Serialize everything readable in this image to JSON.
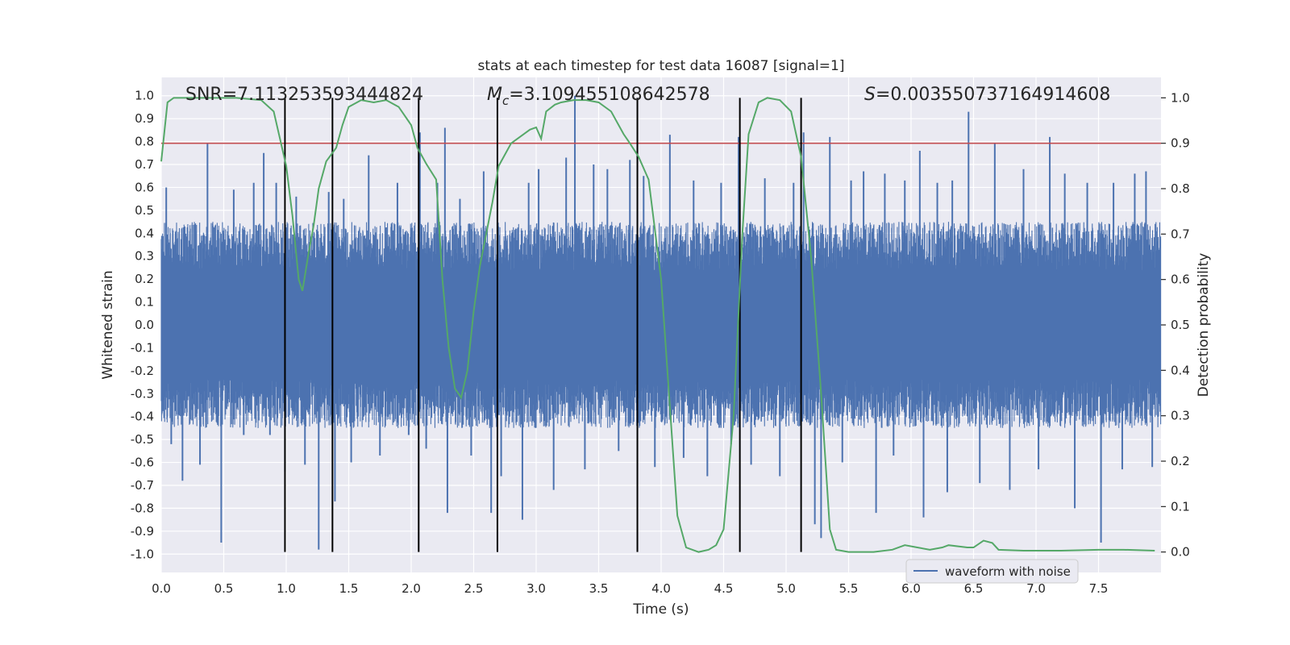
{
  "chart_data": {
    "type": "line",
    "title": "stats at each timestep for test data 16087 [signal=1]",
    "xlabel": "Time (s)",
    "ylabel": "Whitened strain",
    "y2label": "Detection probability",
    "xlim": [
      0.0,
      8.0
    ],
    "ylim": [
      -1.08,
      1.08
    ],
    "y2lim": [
      -0.045,
      1.045
    ],
    "xticks": [
      0.0,
      0.5,
      1.0,
      1.5,
      2.0,
      2.5,
      3.0,
      3.5,
      4.0,
      4.5,
      5.0,
      5.5,
      6.0,
      6.5,
      7.0,
      7.5
    ],
    "yticks": [
      -1.0,
      -0.9,
      -0.8,
      -0.7,
      -0.6,
      -0.5,
      -0.4,
      -0.3,
      -0.2,
      -0.1,
      0.0,
      0.1,
      0.2,
      0.3,
      0.4,
      0.5,
      0.6,
      0.7,
      0.8,
      0.9,
      1.0
    ],
    "y2ticks": [
      0.0,
      0.1,
      0.2,
      0.3,
      0.4,
      0.5,
      0.6,
      0.7,
      0.8,
      0.9,
      1.0
    ],
    "grid": true,
    "legend": {
      "placement": "lower-right",
      "entries": [
        "waveform with noise"
      ]
    },
    "annotations": {
      "snr": "SNR=7.113253593444824",
      "mc_symbol": "M",
      "mc_subscript": "c",
      "mc_value": "=3.109455108642578",
      "s_symbol": "S",
      "s_value": "=0.003550737164914608"
    },
    "threshold": {
      "axis": "right",
      "value": 0.9,
      "color": "#c44e52"
    },
    "vertical_lines": [
      0.99,
      1.37,
      2.06,
      2.69,
      3.81,
      4.63,
      5.12
    ],
    "series": [
      {
        "name": "waveform with noise",
        "axis": "left",
        "color": "#4c72b0",
        "style": "dense-noise",
        "envelope_min": -0.41,
        "envelope_max": 0.41,
        "spikes": [
          [
            0.04,
            0.6
          ],
          [
            0.08,
            -0.52
          ],
          [
            0.17,
            -0.68
          ],
          [
            0.31,
            -0.61
          ],
          [
            0.37,
            0.79
          ],
          [
            0.48,
            -0.95
          ],
          [
            0.58,
            0.59
          ],
          [
            0.66,
            -0.48
          ],
          [
            0.74,
            0.62
          ],
          [
            0.82,
            0.75
          ],
          [
            0.87,
            -0.48
          ],
          [
            0.92,
            0.62
          ],
          [
            0.99,
            -0.64
          ],
          [
            1.08,
            0.56
          ],
          [
            1.15,
            -0.61
          ],
          [
            1.26,
            -0.98
          ],
          [
            1.34,
            0.58
          ],
          [
            1.39,
            -0.77
          ],
          [
            1.46,
            0.55
          ],
          [
            1.52,
            -0.6
          ],
          [
            1.66,
            0.74
          ],
          [
            1.75,
            -0.57
          ],
          [
            1.89,
            0.62
          ],
          [
            1.98,
            -0.48
          ],
          [
            2.07,
            0.84
          ],
          [
            2.12,
            -0.54
          ],
          [
            2.21,
            0.62
          ],
          [
            2.27,
            0.86
          ],
          [
            2.29,
            -0.82
          ],
          [
            2.39,
            0.55
          ],
          [
            2.48,
            -0.57
          ],
          [
            2.58,
            0.67
          ],
          [
            2.64,
            -0.82
          ],
          [
            2.69,
            0.62
          ],
          [
            2.72,
            -0.66
          ],
          [
            2.89,
            -0.85
          ],
          [
            2.94,
            0.62
          ],
          [
            3.02,
            0.68
          ],
          [
            3.14,
            -0.72
          ],
          [
            3.24,
            0.73
          ],
          [
            3.31,
            1.0
          ],
          [
            3.39,
            -0.63
          ],
          [
            3.46,
            0.7
          ],
          [
            3.57,
            0.68
          ],
          [
            3.66,
            -0.55
          ],
          [
            3.75,
            0.72
          ],
          [
            3.86,
            0.65
          ],
          [
            3.95,
            -0.62
          ],
          [
            4.07,
            0.83
          ],
          [
            4.18,
            -0.58
          ],
          [
            4.26,
            0.63
          ],
          [
            4.37,
            -0.66
          ],
          [
            4.48,
            0.62
          ],
          [
            4.56,
            -0.52
          ],
          [
            4.62,
            0.82
          ],
          [
            4.72,
            -0.61
          ],
          [
            4.83,
            0.64
          ],
          [
            4.95,
            -0.66
          ],
          [
            5.06,
            0.62
          ],
          [
            5.14,
            0.84
          ],
          [
            5.23,
            -0.87
          ],
          [
            5.28,
            -0.93
          ],
          [
            5.35,
            0.82
          ],
          [
            5.45,
            -0.6
          ],
          [
            5.52,
            0.63
          ],
          [
            5.62,
            0.67
          ],
          [
            5.72,
            -0.82
          ],
          [
            5.79,
            0.66
          ],
          [
            5.86,
            -0.57
          ],
          [
            5.95,
            0.63
          ],
          [
            6.07,
            0.76
          ],
          [
            6.1,
            -0.84
          ],
          [
            6.21,
            0.62
          ],
          [
            6.29,
            -0.73
          ],
          [
            6.33,
            0.63
          ],
          [
            6.46,
            0.93
          ],
          [
            6.55,
            -0.69
          ],
          [
            6.67,
            0.79
          ],
          [
            6.79,
            -0.72
          ],
          [
            6.9,
            0.68
          ],
          [
            7.02,
            -0.63
          ],
          [
            7.11,
            0.82
          ],
          [
            7.23,
            0.66
          ],
          [
            7.31,
            -0.8
          ],
          [
            7.41,
            0.62
          ],
          [
            7.52,
            -0.95
          ],
          [
            7.62,
            0.62
          ],
          [
            7.69,
            -0.63
          ],
          [
            7.79,
            0.66
          ],
          [
            7.88,
            0.67
          ],
          [
            7.93,
            -0.62
          ]
        ]
      },
      {
        "name": "detection probability",
        "axis": "right",
        "color": "#55a868",
        "x": [
          0.0,
          0.05,
          0.1,
          0.2,
          0.4,
          0.6,
          0.8,
          0.9,
          0.95,
          1.0,
          1.05,
          1.1,
          1.13,
          1.18,
          1.22,
          1.26,
          1.32,
          1.4,
          1.45,
          1.5,
          1.6,
          1.7,
          1.8,
          1.9,
          2.0,
          2.05,
          2.12,
          2.2,
          2.25,
          2.3,
          2.35,
          2.4,
          2.45,
          2.5,
          2.55,
          2.6,
          2.65,
          2.7,
          2.8,
          2.9,
          2.95,
          3.0,
          3.04,
          3.08,
          3.15,
          3.2,
          3.3,
          3.4,
          3.5,
          3.6,
          3.7,
          3.75,
          3.82,
          3.9,
          4.0,
          4.08,
          4.13,
          4.2,
          4.3,
          4.38,
          4.44,
          4.5,
          4.58,
          4.65,
          4.7,
          4.78,
          4.85,
          4.95,
          5.04,
          5.12,
          5.2,
          5.28,
          5.35,
          5.4,
          5.5,
          5.7,
          5.85,
          5.95,
          6.05,
          6.15,
          6.25,
          6.3,
          6.45,
          6.5,
          6.58,
          6.65,
          6.7,
          6.9,
          7.2,
          7.5,
          7.7,
          7.95
        ],
        "values": [
          0.86,
          0.99,
          1.0,
          1.0,
          1.0,
          1.0,
          0.995,
          0.97,
          0.91,
          0.85,
          0.74,
          0.6,
          0.575,
          0.66,
          0.72,
          0.8,
          0.86,
          0.89,
          0.94,
          0.98,
          0.995,
          0.99,
          0.995,
          0.98,
          0.94,
          0.89,
          0.855,
          0.82,
          0.6,
          0.45,
          0.36,
          0.34,
          0.4,
          0.53,
          0.63,
          0.7,
          0.77,
          0.85,
          0.9,
          0.92,
          0.93,
          0.935,
          0.91,
          0.97,
          0.985,
          0.99,
          0.995,
          0.995,
          0.99,
          0.97,
          0.92,
          0.9,
          0.87,
          0.82,
          0.6,
          0.28,
          0.08,
          0.01,
          0.0,
          0.005,
          0.015,
          0.05,
          0.3,
          0.7,
          0.92,
          0.99,
          1.0,
          0.995,
          0.97,
          0.87,
          0.65,
          0.35,
          0.05,
          0.005,
          0.0,
          0.0,
          0.005,
          0.015,
          0.01,
          0.005,
          0.01,
          0.015,
          0.01,
          0.01,
          0.025,
          0.02,
          0.005,
          0.003,
          0.003,
          0.005,
          0.005,
          0.003
        ]
      }
    ]
  }
}
